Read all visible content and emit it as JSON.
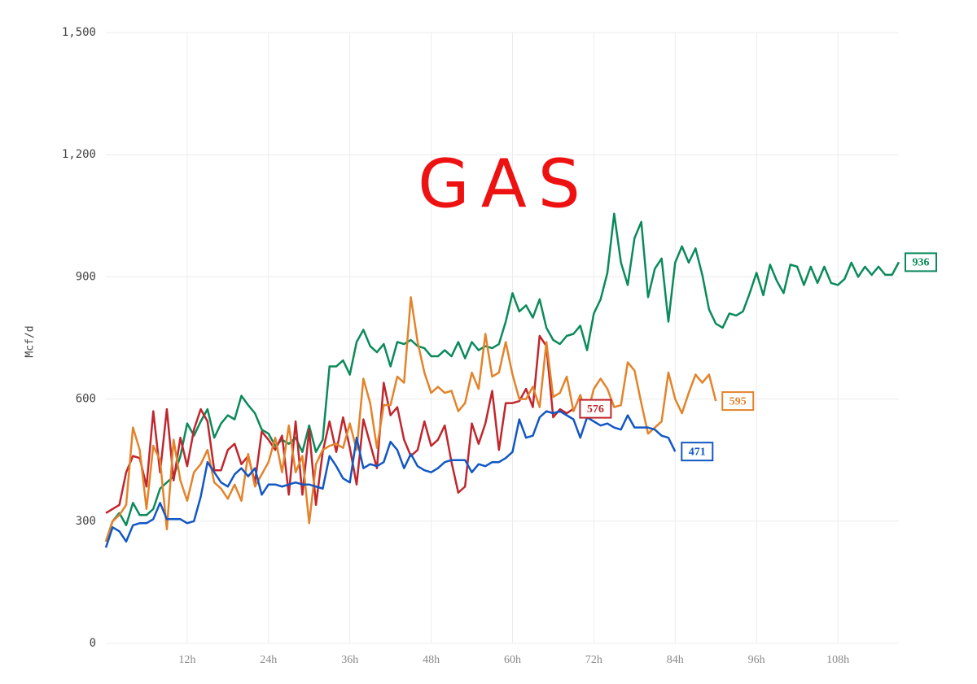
{
  "chart_data": {
    "type": "line",
    "title": "GAS",
    "ylabel": "Mcf/d",
    "x": [
      0,
      1,
      2,
      3,
      4,
      5,
      6,
      7,
      8,
      9,
      10,
      11,
      12,
      13,
      14,
      15,
      16,
      17,
      18,
      19,
      20,
      21,
      22,
      23,
      24,
      25,
      26,
      27,
      28,
      29,
      30,
      31,
      32,
      33,
      34,
      35,
      36,
      37,
      38,
      39,
      40,
      41,
      42,
      43,
      44,
      45,
      46,
      47,
      48,
      49,
      50,
      51,
      52,
      53,
      54,
      55,
      56,
      57,
      58,
      59,
      60,
      61,
      62,
      63,
      64,
      65,
      66,
      67,
      68,
      69,
      70,
      71,
      72,
      73,
      74,
      75,
      76,
      77,
      78,
      79,
      80,
      81,
      82,
      83,
      84,
      85,
      86,
      87,
      88,
      89,
      90,
      91,
      92,
      93,
      94,
      95,
      96,
      97,
      98,
      99,
      100,
      101,
      102,
      103,
      104,
      105,
      106,
      107,
      108,
      109,
      110,
      111,
      112,
      113,
      114,
      115,
      116,
      117
    ],
    "xlim": [
      0,
      117
    ],
    "xticks": [
      {
        "value": 12,
        "label": "12h"
      },
      {
        "value": 24,
        "label": "24h"
      },
      {
        "value": 36,
        "label": "36h"
      },
      {
        "value": 48,
        "label": "48h"
      },
      {
        "value": 60,
        "label": "60h"
      },
      {
        "value": 72,
        "label": "72h"
      },
      {
        "value": 84,
        "label": "84h"
      },
      {
        "value": 96,
        "label": "96h"
      },
      {
        "value": 108,
        "label": "108h"
      }
    ],
    "ylim": [
      0,
      1500
    ],
    "yticks": [
      0,
      300,
      600,
      900,
      {
        "value": 1200,
        "label": "1,200"
      },
      {
        "value": 1500,
        "label": "1,500"
      }
    ],
    "grid": true,
    "series": [
      {
        "name": "green",
        "color": "#0b8a5a",
        "values": [
          250,
          300,
          320,
          290,
          345,
          315,
          315,
          330,
          380,
          395,
          410,
          460,
          540,
          510,
          545,
          575,
          505,
          540,
          560,
          550,
          608,
          585,
          565,
          525,
          515,
          485,
          500,
          490,
          505,
          470,
          535,
          470,
          500,
          680,
          680,
          695,
          660,
          740,
          770,
          730,
          715,
          735,
          680,
          740,
          735,
          745,
          730,
          725,
          705,
          705,
          720,
          705,
          740,
          700,
          740,
          720,
          730,
          725,
          735,
          790,
          860,
          815,
          830,
          800,
          845,
          775,
          745,
          735,
          755,
          760,
          780,
          720,
          810,
          845,
          910,
          1055,
          935,
          880,
          995,
          1035,
          850,
          920,
          945,
          790,
          935,
          975,
          935,
          970,
          905,
          820,
          785,
          775,
          810,
          805,
          815,
          860,
          910,
          855,
          930,
          890,
          860,
          930,
          925,
          880,
          925,
          885,
          925,
          885,
          880,
          895,
          935,
          900,
          925,
          905,
          925,
          905,
          905,
          936
        ]
      },
      {
        "name": "red",
        "color": "#c0262d",
        "values": [
          320,
          330,
          340,
          420,
          460,
          455,
          385,
          570,
          420,
          575,
          400,
          505,
          435,
          525,
          575,
          545,
          425,
          425,
          475,
          490,
          440,
          460,
          395,
          520,
          500,
          475,
          510,
          365,
          545,
          365,
          525,
          340,
          470,
          545,
          470,
          555,
          480,
          390,
          550,
          490,
          430,
          640,
          560,
          580,
          500,
          460,
          475,
          545,
          485,
          500,
          535,
          445,
          370,
          385,
          540,
          490,
          540,
          620,
          475,
          590,
          590,
          595,
          625,
          580,
          755,
          730,
          555,
          575,
          565,
          576,
          null,
          null,
          null,
          null,
          null,
          null,
          null,
          null,
          null,
          null,
          null,
          null,
          null,
          null,
          null,
          null,
          null,
          null,
          null,
          null,
          null,
          null,
          null,
          null,
          null,
          null,
          null,
          null,
          null,
          null,
          null,
          null,
          null,
          null,
          null,
          null,
          null,
          null,
          null,
          null,
          null,
          null,
          null,
          null,
          null,
          null,
          null,
          null
        ]
      },
      {
        "name": "orange",
        "color": "#e3832a",
        "values": [
          250,
          300,
          315,
          340,
          530,
          475,
          330,
          485,
          450,
          280,
          500,
          400,
          350,
          420,
          440,
          475,
          395,
          380,
          355,
          390,
          350,
          465,
          385,
          415,
          445,
          505,
          420,
          535,
          420,
          460,
          295,
          440,
          475,
          485,
          490,
          480,
          540,
          475,
          650,
          590,
          480,
          585,
          585,
          655,
          640,
          850,
          740,
          665,
          615,
          630,
          615,
          620,
          570,
          590,
          665,
          625,
          760,
          655,
          665,
          740,
          660,
          600,
          600,
          630,
          580,
          740,
          605,
          615,
          655,
          570,
          610,
          560,
          625,
          650,
          625,
          580,
          585,
          690,
          670,
          590,
          515,
          530,
          545,
          665,
          600,
          565,
          615,
          660,
          640,
          660,
          595,
          null,
          null,
          null,
          null,
          null,
          null,
          null,
          null,
          null,
          null,
          null,
          null,
          null,
          null,
          null,
          null,
          null,
          null,
          null,
          null,
          null,
          null,
          null,
          null,
          null,
          null,
          null
        ]
      },
      {
        "name": "blue",
        "color": "#1257c4",
        "values": [
          235,
          285,
          275,
          250,
          290,
          295,
          295,
          305,
          345,
          305,
          305,
          305,
          295,
          300,
          360,
          445,
          420,
          395,
          385,
          415,
          430,
          410,
          430,
          365,
          390,
          390,
          385,
          390,
          395,
          390,
          390,
          385,
          380,
          460,
          435,
          405,
          395,
          505,
          430,
          440,
          435,
          445,
          495,
          475,
          430,
          465,
          435,
          425,
          420,
          430,
          445,
          450,
          450,
          450,
          420,
          440,
          435,
          445,
          445,
          455,
          470,
          550,
          505,
          510,
          555,
          570,
          565,
          570,
          560,
          550,
          505,
          555,
          545,
          535,
          540,
          530,
          525,
          560,
          530,
          530,
          530,
          525,
          510,
          505,
          471,
          null,
          null,
          null,
          null,
          null,
          null,
          null,
          null,
          null,
          null,
          null,
          null,
          null,
          null,
          null,
          null,
          null,
          null,
          null,
          null,
          null,
          null,
          null,
          null,
          null,
          null,
          null,
          null,
          null,
          null,
          null,
          null,
          null
        ]
      }
    ]
  }
}
